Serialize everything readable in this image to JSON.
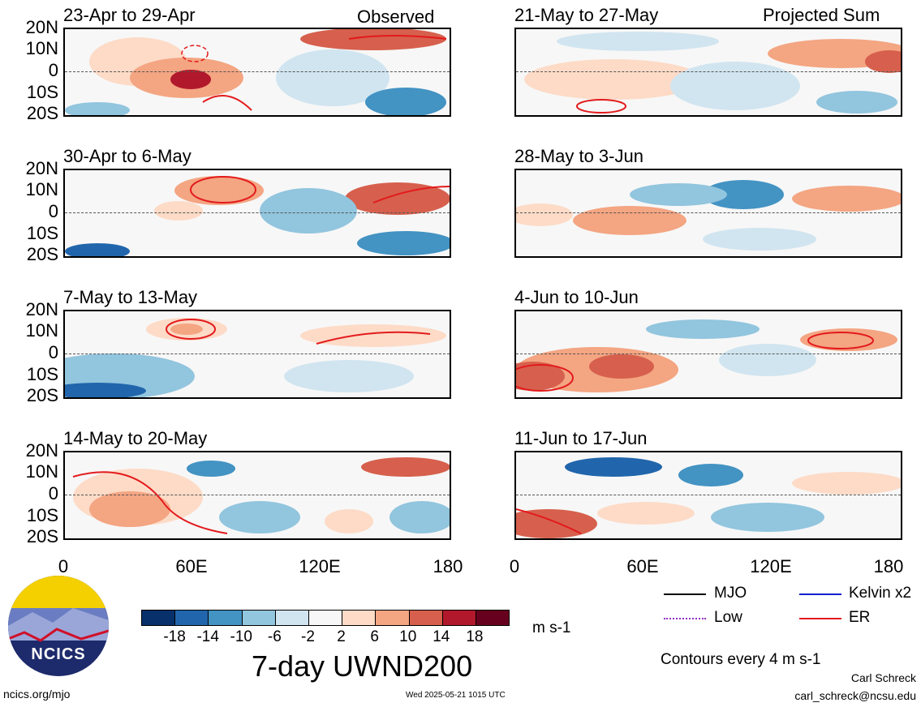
{
  "panels_left": [
    {
      "date": "23-Apr to 29-Apr",
      "corner": "Observed"
    },
    {
      "date": "30-Apr to 6-May",
      "corner": ""
    },
    {
      "date": "7-May to 13-May",
      "corner": ""
    },
    {
      "date": "14-May to 20-May",
      "corner": ""
    }
  ],
  "panels_right": [
    {
      "date": "21-May to 27-May",
      "corner": "Projected Sum"
    },
    {
      "date": "28-May to 3-Jun",
      "corner": ""
    },
    {
      "date": "4-Jun to 10-Jun",
      "corner": ""
    },
    {
      "date": "11-Jun to 17-Jun",
      "corner": ""
    }
  ],
  "y_ticks": [
    "20N",
    "10N",
    "0",
    "10S",
    "20S"
  ],
  "x_ticks": [
    "0",
    "60E",
    "120E",
    "180"
  ],
  "colorbar": {
    "labels": [
      "-18",
      "-14",
      "-10",
      "-6",
      "-2",
      "2",
      "6",
      "10",
      "14",
      "18"
    ],
    "colors": [
      "#08306b",
      "#2166ac",
      "#4393c3",
      "#92c5de",
      "#d1e5f0",
      "#f7f7f7",
      "#fddbc7",
      "#f4a582",
      "#d6604d",
      "#b2182b",
      "#67001f"
    ],
    "unit": "m s-1"
  },
  "main_title": "7-day UWND200",
  "legend": {
    "mjo": "MJO",
    "kelvin": "Kelvin x2",
    "low": "Low",
    "er": "ER",
    "contours": "Contours every 4 m s-1"
  },
  "logo_text": "NCICS",
  "footer": {
    "url": "ncics.org/mjo",
    "timestamp": "Wed 2025-05-21 1015 UTC",
    "author": "Carl Schreck",
    "email": "carl_schreck@ncsu.edu"
  }
}
